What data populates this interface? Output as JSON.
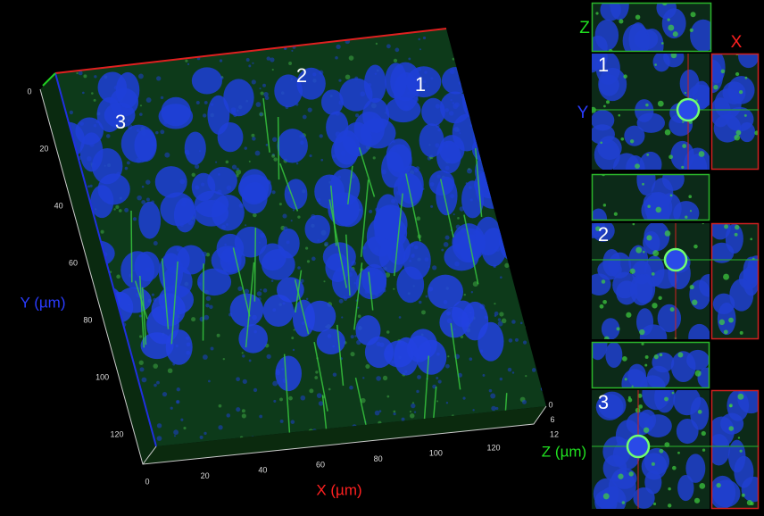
{
  "image": {
    "cell_labels": [
      "3",
      "2",
      "1"
    ],
    "y_axis": {
      "label": "Y (µm)",
      "ticks": [
        0,
        20,
        40,
        60,
        80,
        100,
        120
      ]
    },
    "x_axis": {
      "label": "X (µm)",
      "ticks": [
        0,
        20,
        40,
        60,
        80,
        100,
        120
      ]
    },
    "z_axis": {
      "label": "Z (µm)",
      "ticks": [
        0,
        6,
        12
      ]
    }
  },
  "panels": {
    "z_label": "Z",
    "x_label": "X",
    "y_label": "Y",
    "numbers": [
      "1",
      "2",
      "3"
    ]
  }
}
